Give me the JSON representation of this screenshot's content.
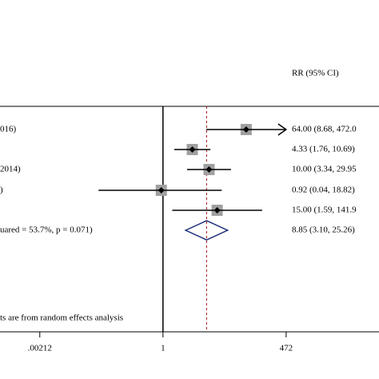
{
  "chart_data": {
    "type": "forest",
    "scale": "log",
    "ci_header": "RR (95% CI)",
    "studies": [
      {
        "label": "016)",
        "rr": 64.0,
        "lo": 8.68,
        "hi": 472.0,
        "ci_label": "64.00 (8.68, 472.0",
        "arrow": true
      },
      {
        "rr": 4.33,
        "lo": 1.76,
        "hi": 10.69,
        "ci_label": "4.33 (1.76, 10.69)"
      },
      {
        "label": "2014)",
        "rr": 10.0,
        "lo": 3.34,
        "hi": 29.95,
        "ci_label": "10.00 (3.34, 29.95"
      },
      {
        "label": ")",
        "rr": 0.92,
        "lo": 0.04,
        "hi": 18.82,
        "ci_label": "0.92 (0.04, 18.82)"
      },
      {
        "rr": 15.0,
        "lo": 1.59,
        "hi": 141.9,
        "ci_label": "15.00 (1.59, 141.9"
      }
    ],
    "overall": {
      "label": "uared = 53.7%, p = 0.071)",
      "rr": 8.85,
      "lo": 3.1,
      "hi": 25.26,
      "ci_label": "8.85 (3.10, 25.26)"
    },
    "footnote": "ts are from random effects analysis",
    "xlim": [
      0.00029,
      48900
    ],
    "xticks": [
      {
        "value": 0.00212,
        "label": ".00212"
      },
      1,
      472
    ],
    "box_color": "#a0a0a0",
    "diamond_color": "#1f2f7a",
    "overall_line_color": "#b03030"
  }
}
